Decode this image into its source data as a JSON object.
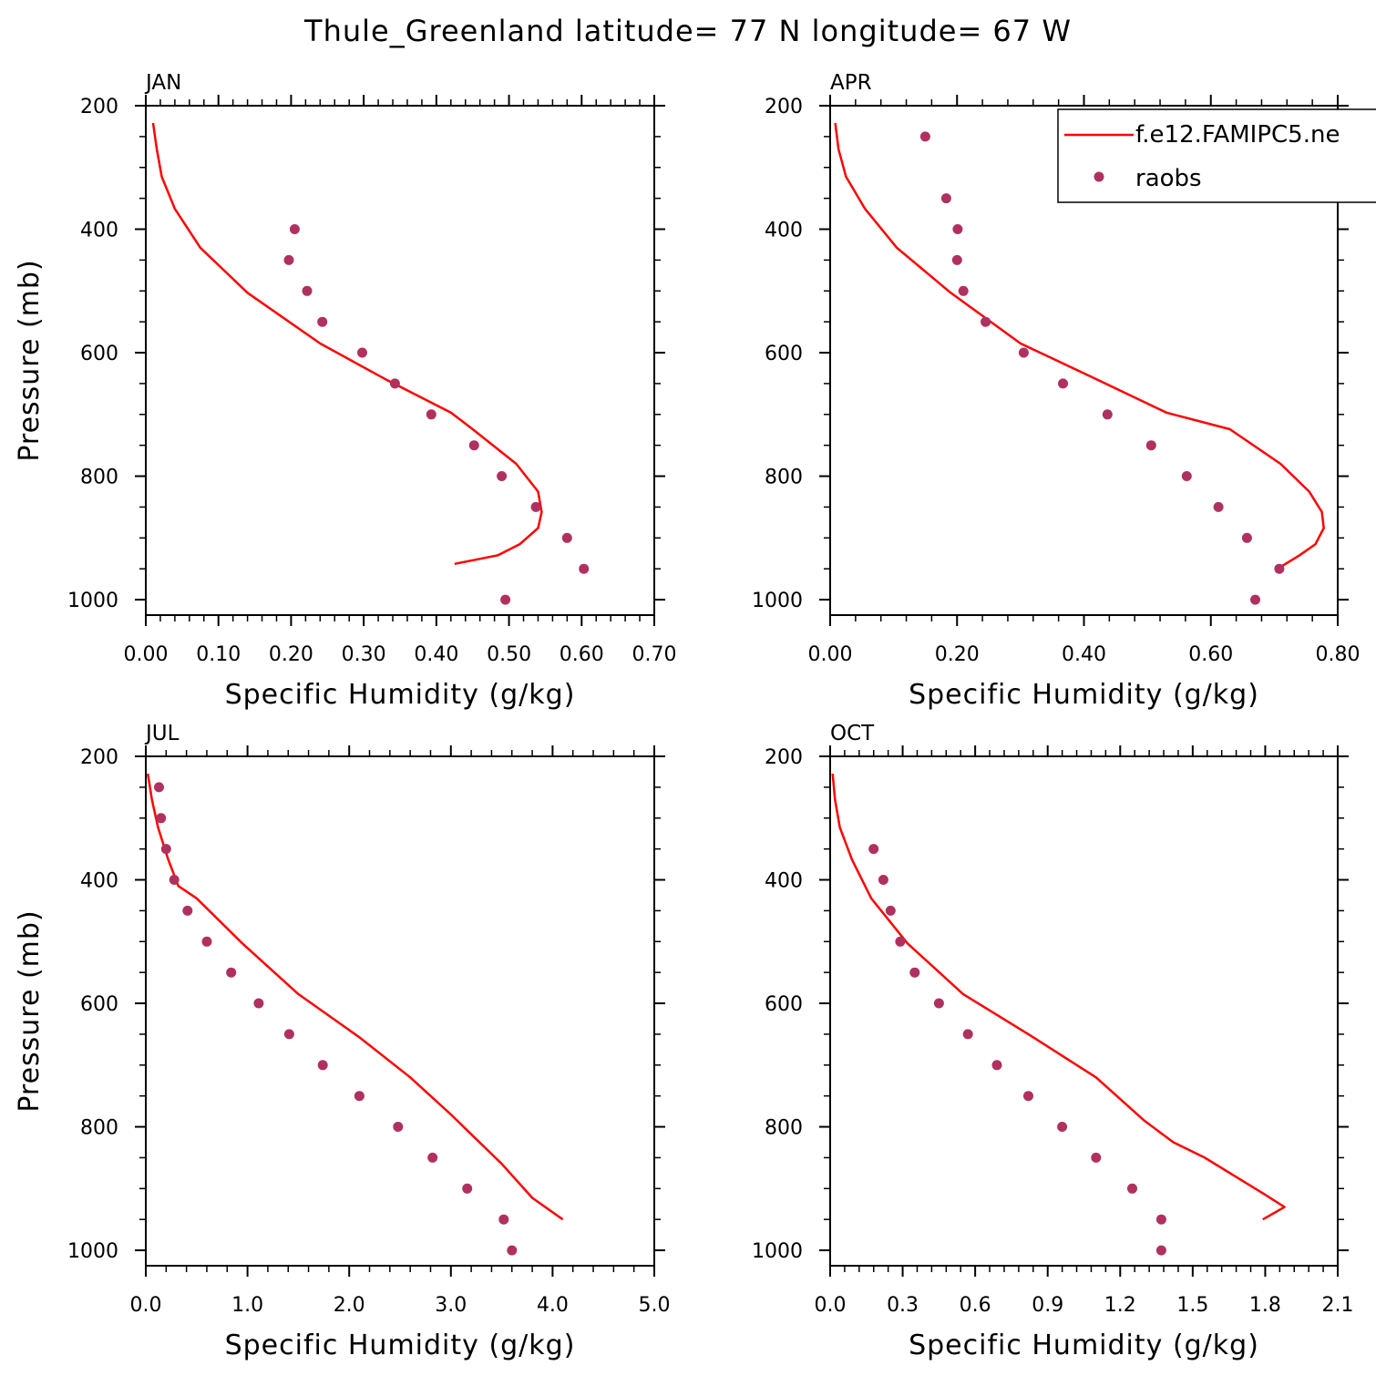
{
  "title": "Thule_Greenland  latitude= 77 N longitude= 67 W",
  "colors": {
    "model": "#ff0000",
    "obs": "#b03060",
    "axis": "#000000"
  },
  "legend": {
    "model_label": "f.e12.FAMIPC5.ne",
    "obs_label": "raobs",
    "placement": "top-right of APR panel"
  },
  "chart_data": [
    {
      "type": "line+scatter",
      "panel": "JAN",
      "xlabel": "Specific Humidity (g/kg)",
      "ylabel": "Pressure (mb)",
      "xlim": [
        0,
        0.7
      ],
      "ylim": [
        200,
        1025
      ],
      "y_inverted": true,
      "xticks": [
        "0.00",
        "0.10",
        "0.20",
        "0.30",
        "0.40",
        "0.50",
        "0.60",
        "0.70"
      ],
      "yticks": [
        "200",
        "400",
        "600",
        "800",
        "1000"
      ],
      "series": [
        {
          "name": "f.e12.FAMIPC5.ne",
          "kind": "line",
          "x": [
            0.01,
            0.015,
            0.022,
            0.04,
            0.075,
            0.14,
            0.24,
            0.33,
            0.42,
            0.45,
            0.51,
            0.54,
            0.545,
            0.54,
            0.515,
            0.485,
            0.425
          ],
          "y": [
            228,
            270,
            315,
            367,
            430,
            503,
            585,
            643,
            697,
            724,
            780,
            825,
            858,
            884,
            910,
            928,
            942
          ]
        },
        {
          "name": "raobs",
          "kind": "scatter",
          "x": [
            0.205,
            0.197,
            0.222,
            0.243,
            0.298,
            0.343,
            0.393,
            0.452,
            0.49,
            0.537,
            0.58,
            0.603,
            0.495
          ],
          "y": [
            400,
            450,
            500,
            550,
            600,
            650,
            700,
            750,
            800,
            850,
            900,
            950,
            1000
          ]
        }
      ]
    },
    {
      "type": "line+scatter",
      "panel": "APR",
      "xlabel": "Specific Humidity (g/kg)",
      "ylabel": "",
      "xlim": [
        0,
        0.8
      ],
      "ylim": [
        200,
        1025
      ],
      "y_inverted": true,
      "xticks": [
        "0.00",
        "0.20",
        "0.40",
        "0.60",
        "0.80"
      ],
      "yticks": [
        "200",
        "400",
        "600",
        "800",
        "1000"
      ],
      "series": [
        {
          "name": "f.e12.FAMIPC5.ne",
          "kind": "line",
          "x": [
            0.008,
            0.013,
            0.025,
            0.055,
            0.105,
            0.19,
            0.3,
            0.42,
            0.53,
            0.63,
            0.71,
            0.755,
            0.775,
            0.778,
            0.765,
            0.74,
            0.705
          ],
          "y": [
            228,
            270,
            315,
            367,
            430,
            503,
            585,
            643,
            697,
            724,
            780,
            825,
            858,
            884,
            910,
            928,
            950
          ]
        },
        {
          "name": "raobs",
          "kind": "scatter",
          "x": [
            0.15,
            0.183,
            0.201,
            0.2,
            0.21,
            0.245,
            0.305,
            0.367,
            0.437,
            0.506,
            0.562,
            0.612,
            0.657,
            0.708,
            0.67
          ],
          "y": [
            250,
            350,
            400,
            450,
            500,
            550,
            600,
            650,
            700,
            750,
            800,
            850,
            900,
            950,
            1000
          ]
        }
      ]
    },
    {
      "type": "line+scatter",
      "panel": "JUL",
      "xlabel": "Specific Humidity (g/kg)",
      "ylabel": "Pressure (mb)",
      "xlim": [
        0,
        5.0
      ],
      "ylim": [
        200,
        1025
      ],
      "y_inverted": true,
      "xticks": [
        "0.0",
        "1.0",
        "2.0",
        "3.0",
        "4.0",
        "5.0"
      ],
      "yticks": [
        "200",
        "400",
        "600",
        "800",
        "1000"
      ],
      "series": [
        {
          "name": "f.e12.FAMIPC5.ne",
          "kind": "line",
          "x": [
            0.02,
            0.06,
            0.12,
            0.22,
            0.32,
            0.5,
            0.95,
            1.5,
            2.1,
            2.6,
            3.0,
            3.5,
            3.8,
            4.1
          ],
          "y": [
            228,
            270,
            315,
            367,
            410,
            430,
            503,
            585,
            655,
            720,
            780,
            860,
            915,
            950
          ]
        },
        {
          "name": "raobs",
          "kind": "scatter",
          "x": [
            0.13,
            0.15,
            0.2,
            0.28,
            0.41,
            0.6,
            0.84,
            1.11,
            1.41,
            1.74,
            2.1,
            2.48,
            2.82,
            3.16,
            3.52,
            3.6
          ],
          "y": [
            250,
            300,
            350,
            400,
            450,
            500,
            550,
            600,
            650,
            700,
            750,
            800,
            850,
            900,
            950,
            1000
          ]
        }
      ]
    },
    {
      "type": "line+scatter",
      "panel": "OCT",
      "xlabel": "Specific Humidity (g/kg)",
      "ylabel": "",
      "xlim": [
        0,
        2.1
      ],
      "ylim": [
        200,
        1025
      ],
      "y_inverted": true,
      "xticks": [
        "0.0",
        "0.3",
        "0.6",
        "0.9",
        "1.2",
        "1.5",
        "1.8",
        "2.1"
      ],
      "yticks": [
        "200",
        "400",
        "600",
        "800",
        "1000"
      ],
      "series": [
        {
          "name": "f.e12.FAMIPC5.ne",
          "kind": "line",
          "x": [
            0.01,
            0.02,
            0.04,
            0.09,
            0.17,
            0.32,
            0.55,
            0.82,
            1.1,
            1.3,
            1.42,
            1.55,
            1.8,
            1.88,
            1.79
          ],
          "y": [
            228,
            270,
            315,
            367,
            430,
            503,
            585,
            650,
            720,
            790,
            825,
            850,
            910,
            930,
            950
          ]
        },
        {
          "name": "raobs",
          "kind": "scatter",
          "x": [
            0.18,
            0.22,
            0.25,
            0.29,
            0.35,
            0.45,
            0.57,
            0.69,
            0.82,
            0.96,
            1.1,
            1.25,
            1.37,
            1.37
          ],
          "y": [
            350,
            400,
            450,
            500,
            550,
            600,
            650,
            700,
            750,
            800,
            850,
            900,
            950,
            1000
          ]
        }
      ]
    }
  ]
}
